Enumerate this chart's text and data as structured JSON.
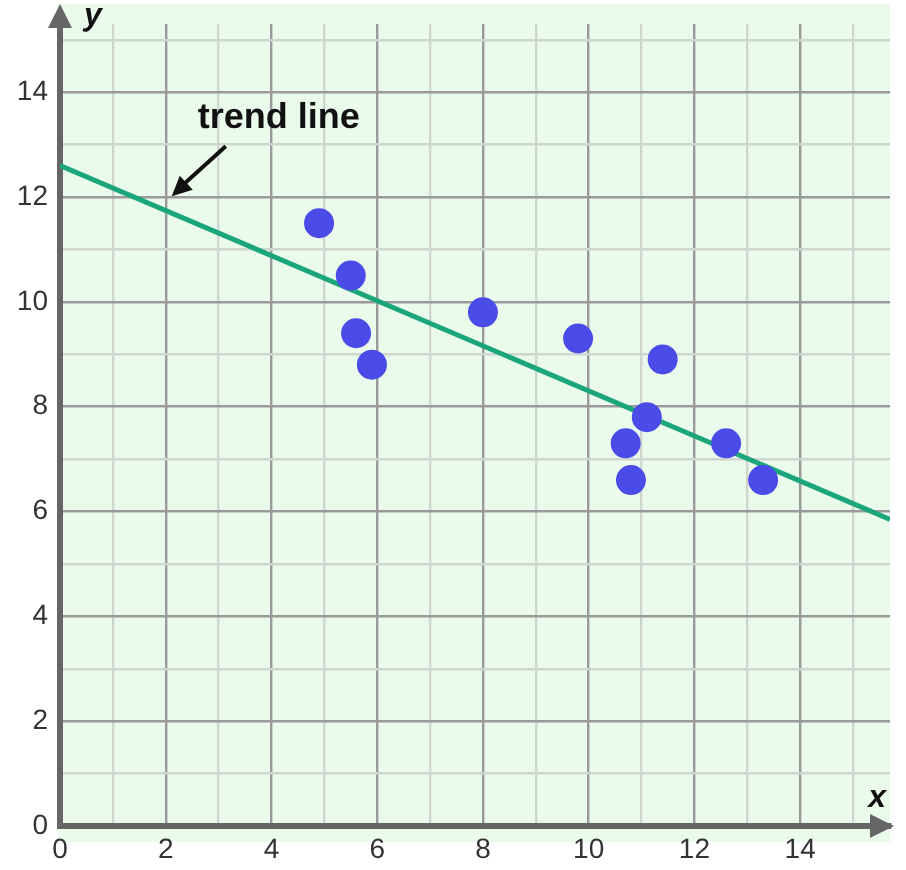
{
  "chart_data": {
    "type": "scatter",
    "xlabel": "x",
    "ylabel": "y",
    "xlim": [
      0,
      15.7
    ],
    "ylim": [
      0,
      15.3
    ],
    "xticks": [
      0,
      {
        "value": 1,
        "label": null
      },
      2,
      {
        "value": 3,
        "label": null
      },
      4,
      {
        "value": 5,
        "label": null
      },
      6,
      {
        "value": 7,
        "label": null
      },
      8,
      {
        "value": 9,
        "label": null
      },
      10,
      {
        "value": 11,
        "label": null
      },
      12,
      {
        "value": 13,
        "label": null
      },
      14,
      {
        "value": 15,
        "label": null
      }
    ],
    "yticks": [
      0,
      {
        "value": 1,
        "label": null
      },
      2,
      {
        "value": 3,
        "label": null
      },
      4,
      {
        "value": 5,
        "label": null
      },
      6,
      {
        "value": 7,
        "label": null
      },
      8,
      {
        "value": 9,
        "label": null
      },
      10,
      {
        "value": 11,
        "label": null
      },
      12,
      {
        "value": 13,
        "label": null
      },
      14,
      {
        "value": 15,
        "label": null
      }
    ],
    "grid": true,
    "legend": false,
    "series": [
      {
        "type": "scatter",
        "color": "#4b4be8",
        "marker": "circle",
        "x": [
          4.9,
          5.5,
          5.6,
          5.9,
          8.0,
          9.8,
          11.4,
          11.1,
          10.7,
          10.8,
          12.6,
          13.3
        ],
        "values": [
          11.5,
          10.5,
          9.4,
          8.8,
          9.8,
          9.3,
          8.9,
          7.8,
          7.3,
          6.6,
          7.3,
          6.6
        ]
      },
      {
        "type": "line",
        "color": "#1aa67a",
        "marker": "none",
        "line_style": "solid",
        "x": [
          0,
          15.7
        ],
        "values": [
          12.6,
          5.85
        ]
      }
    ],
    "annotations": [
      {
        "text": "trend line",
        "x": 2,
        "y": 11.9
      }
    ]
  }
}
